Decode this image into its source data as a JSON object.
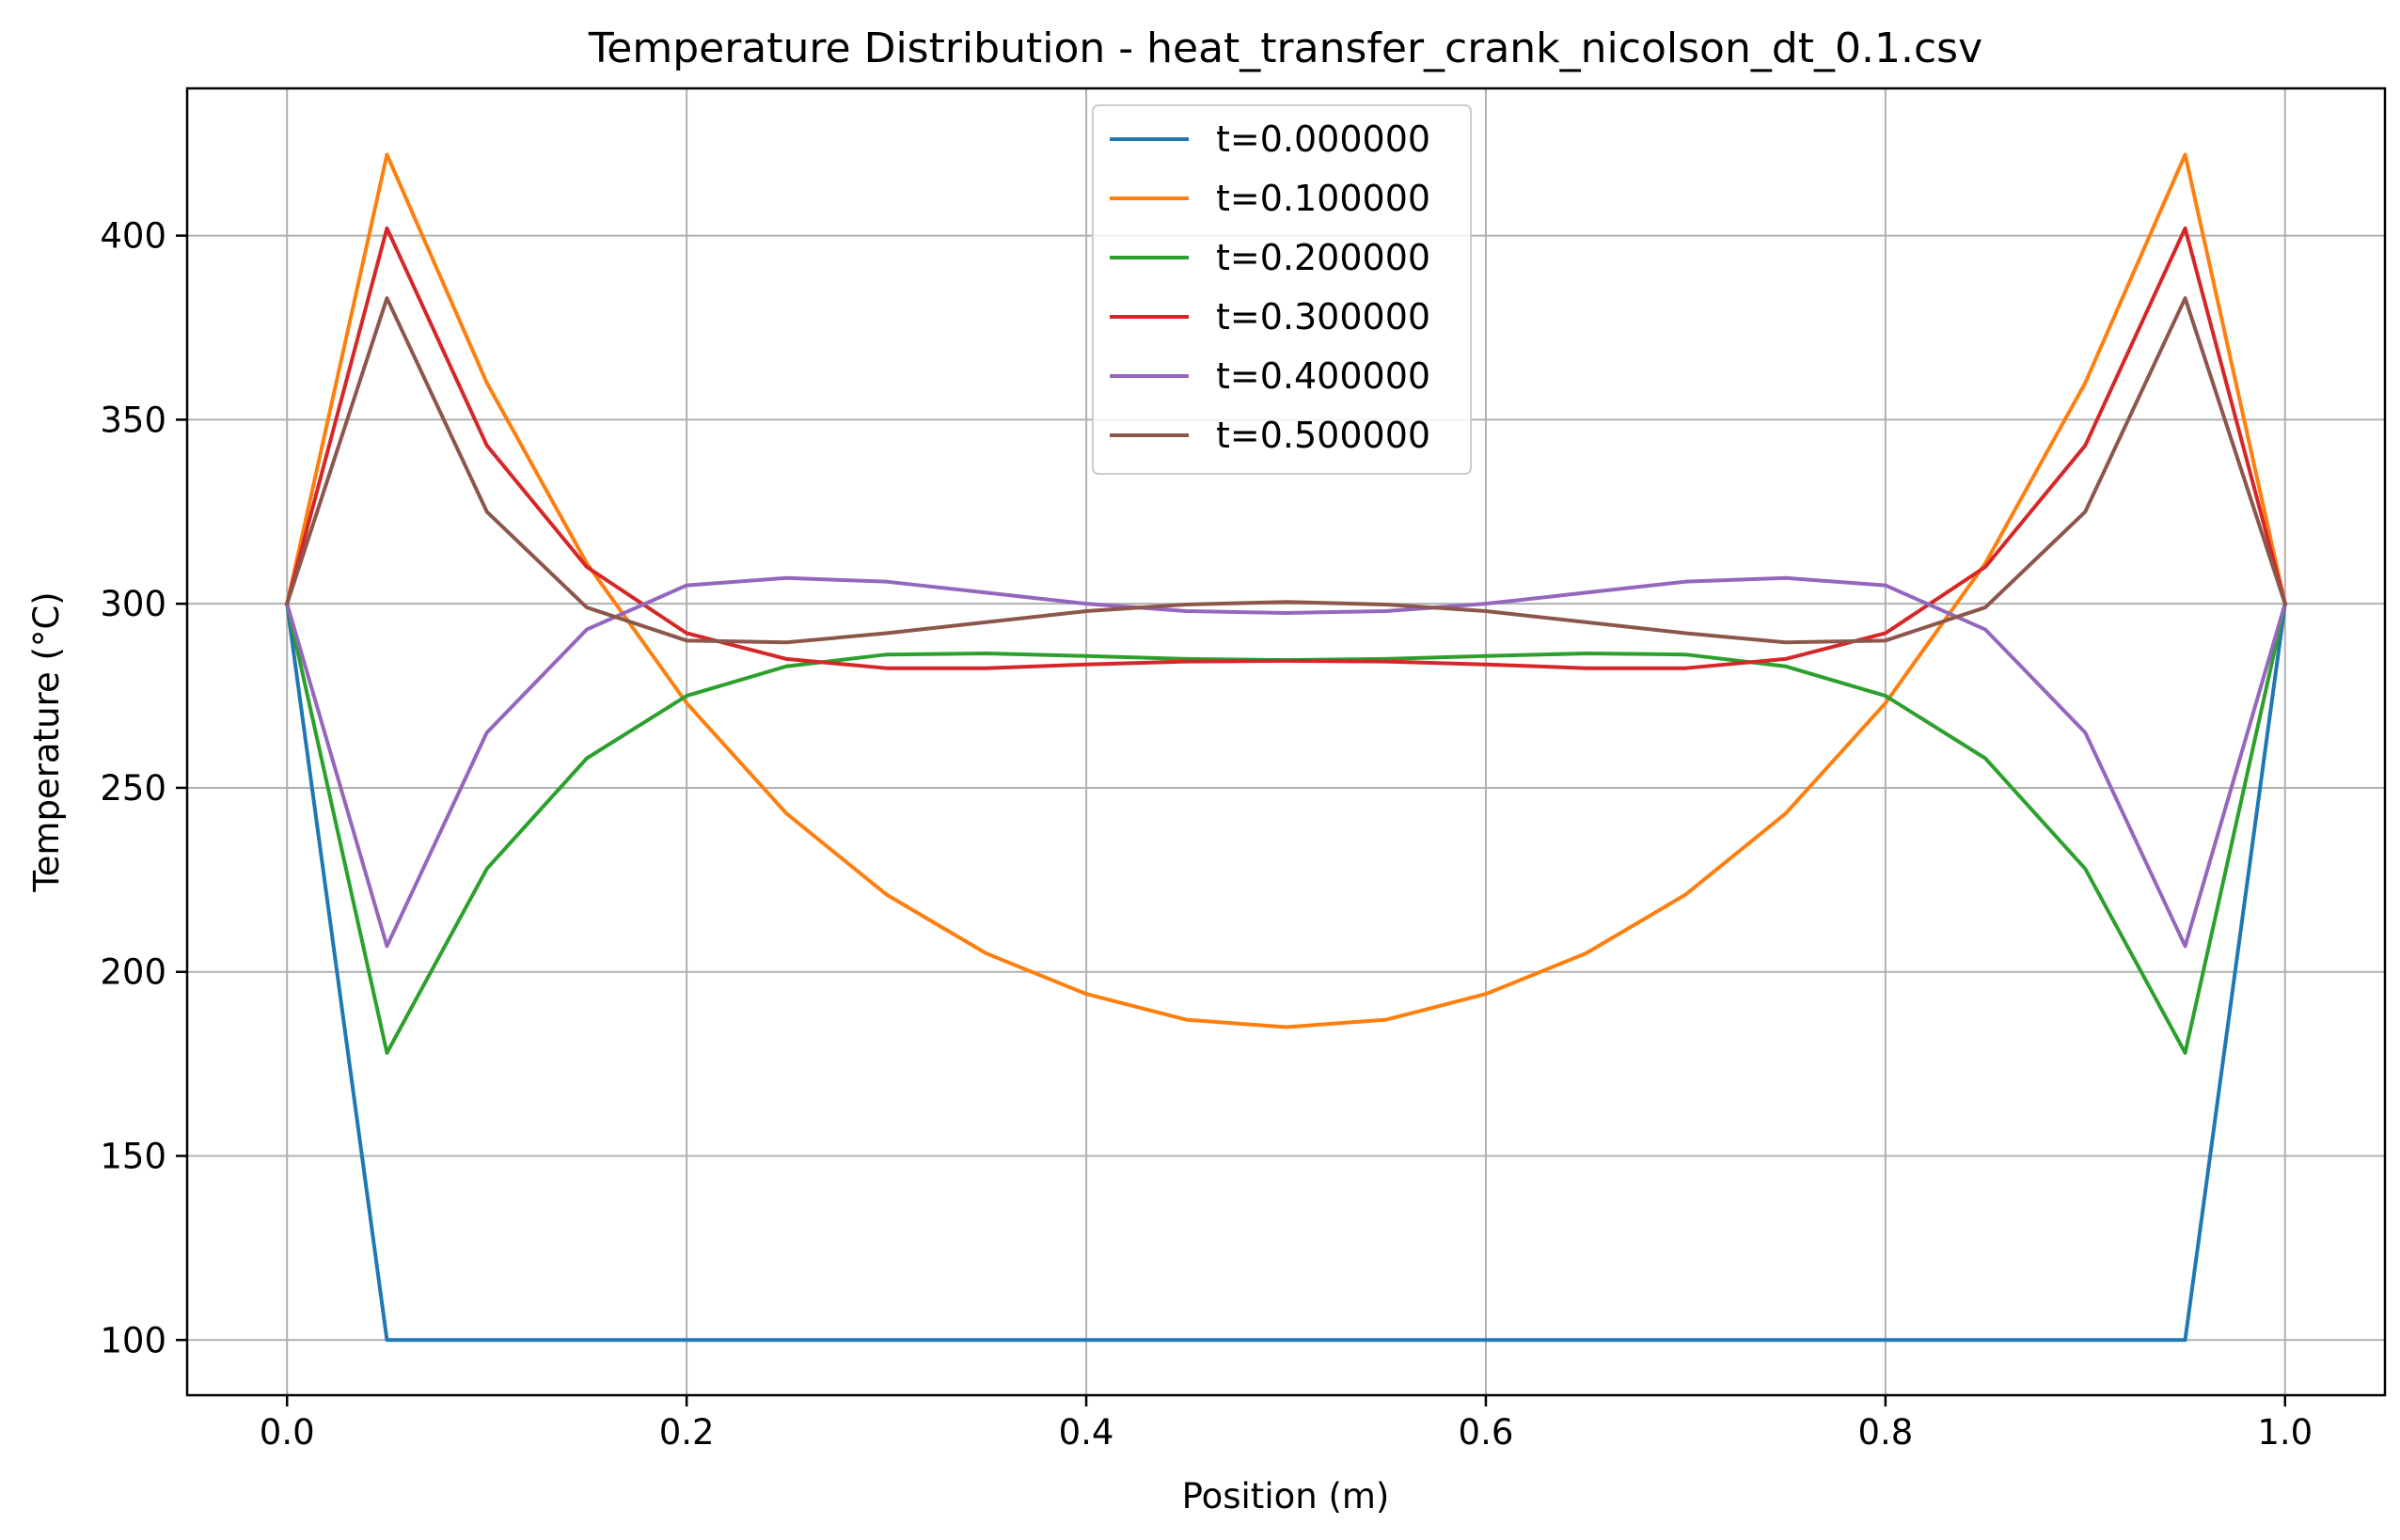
{
  "chart_data": {
    "type": "line",
    "title": "Temperature Distribution - heat_transfer_crank_nicolson_dt_0.1.csv",
    "xlabel": "Position (m)",
    "ylabel": "Temperature (°C)",
    "xlim": [
      -0.05,
      1.05
    ],
    "ylim": [
      85,
      440
    ],
    "xticks": [
      0.0,
      0.2,
      0.4,
      0.6,
      0.8,
      1.0
    ],
    "xtick_labels": [
      "0.0",
      "0.2",
      "0.4",
      "0.6",
      "0.8",
      "1.0"
    ],
    "yticks": [
      100,
      150,
      200,
      250,
      300,
      350,
      400
    ],
    "ytick_labels": [
      "100",
      "150",
      "200",
      "250",
      "300",
      "350",
      "400"
    ],
    "grid": true,
    "legend_position": "top-center",
    "x": [
      0.0,
      0.05,
      0.1,
      0.15,
      0.2,
      0.25,
      0.3,
      0.35,
      0.4,
      0.45,
      0.5,
      0.55,
      0.6,
      0.65,
      0.7,
      0.75,
      0.8,
      0.85,
      0.9,
      0.95,
      1.0
    ],
    "series": [
      {
        "name": "t=0.000000",
        "color": "#1f77b4",
        "values": [
          300,
          100,
          100,
          100,
          100,
          100,
          100,
          100,
          100,
          100,
          100,
          100,
          100,
          100,
          100,
          100,
          100,
          100,
          100,
          100,
          300
        ]
      },
      {
        "name": "t=0.100000",
        "color": "#ff7f0e",
        "values": [
          300,
          422,
          360,
          311,
          273,
          243,
          221,
          205,
          194,
          187,
          185,
          187,
          194,
          205,
          221,
          243,
          273,
          311,
          360,
          422,
          300
        ]
      },
      {
        "name": "t=0.200000",
        "color": "#2ca02c",
        "values": [
          300,
          178,
          228,
          258,
          275,
          283,
          286.2,
          286.5,
          285.8,
          285,
          284.7,
          285,
          285.8,
          286.5,
          286.2,
          283,
          275,
          258,
          228,
          178,
          300
        ]
      },
      {
        "name": "t=0.300000",
        "color": "#d62728",
        "values": [
          300,
          402,
          343,
          310,
          292,
          285,
          282.5,
          282.5,
          283.5,
          284.3,
          284.5,
          284.3,
          283.5,
          282.5,
          282.5,
          285,
          292,
          310,
          343,
          402,
          300
        ]
      },
      {
        "name": "t=0.400000",
        "color": "#9467bd",
        "values": [
          300,
          207,
          265,
          293,
          305,
          307,
          306,
          303,
          300,
          298,
          297.5,
          298,
          300,
          303,
          306,
          307,
          305,
          293,
          265,
          207,
          300
        ]
      },
      {
        "name": "t=0.500000",
        "color": "#8c564b",
        "values": [
          300,
          383,
          325,
          299,
          290,
          289.5,
          292,
          295,
          298,
          299.8,
          300.5,
          299.8,
          298,
          295,
          292,
          289.5,
          290,
          299,
          325,
          383,
          300
        ]
      }
    ]
  }
}
